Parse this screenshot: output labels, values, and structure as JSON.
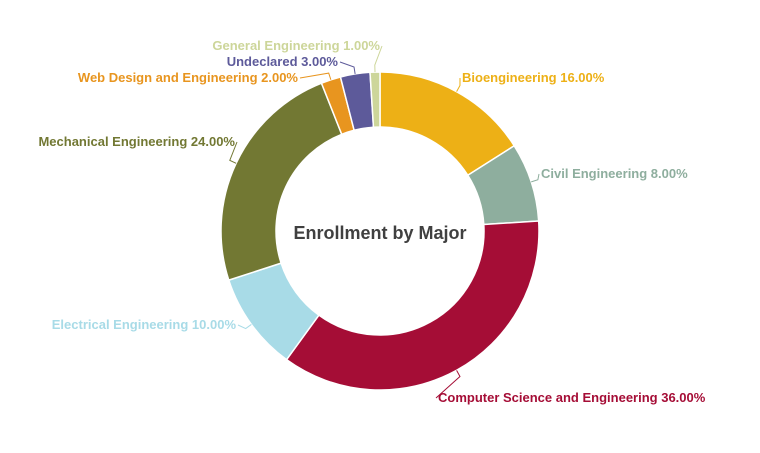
{
  "chart_data": {
    "type": "pie",
    "variant": "donut",
    "title": "Enrollment by Major",
    "start_angle_deg": 0,
    "direction": "clockwise",
    "slices": [
      {
        "label": "Bioengineering",
        "value": 16,
        "display": "Bioengineering 16.00%",
        "color": "#EDB016"
      },
      {
        "label": "Civil Engineering",
        "value": 8,
        "display": "Civil Engineering 8.00%",
        "color": "#8EAE9E"
      },
      {
        "label": "Computer Science and Engineering",
        "value": 36,
        "display": "Computer Science and Engineering 36.00%",
        "color": "#A50D36"
      },
      {
        "label": "Electrical Engineering",
        "value": 10,
        "display": "Electrical Engineering 10.00%",
        "color": "#A8DBE7"
      },
      {
        "label": "Mechanical Engineering",
        "value": 24,
        "display": "Mechanical Engineering 24.00%",
        "color": "#727833"
      },
      {
        "label": "Web Design and Engineering",
        "value": 2,
        "display": "Web Design and Engineering 2.00%",
        "color": "#E8951F"
      },
      {
        "label": "Undeclared",
        "value": 3,
        "display": "Undeclared 3.00%",
        "color": "#5D5A9A"
      },
      {
        "label": "General Engineering",
        "value": 1,
        "display": "General Engineering 1.00%",
        "color": "#CDD69A"
      }
    ]
  }
}
